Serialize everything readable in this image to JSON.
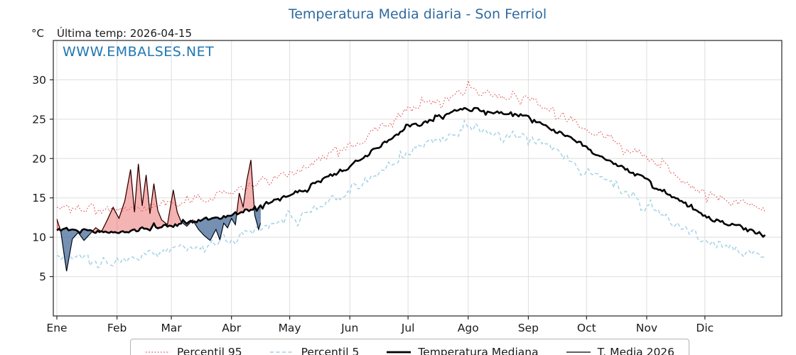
{
  "colors": {
    "title": "#2f6a9f",
    "watermark": "#1f77b4",
    "axis": "#262626",
    "grid": "#dedede",
    "text": "#1a1a1a"
  },
  "chart_data": {
    "type": "line",
    "title": "Temperatura Media diaria - Son Ferriol",
    "ylabel": "°C",
    "annotations": {
      "watermark": "WWW.EMBALSES.NET",
      "last_temp_label": "Última temp: 2026-04-15"
    },
    "grid": true,
    "legend_position": "bottom",
    "ylim": [
      0,
      35
    ],
    "y_ticks": [
      5,
      10,
      15,
      20,
      25,
      30
    ],
    "x_tick_labels": [
      "Ene",
      "Feb",
      "Mar",
      "Abr",
      "May",
      "Jun",
      "Jul",
      "Ago",
      "Sep",
      "Oct",
      "Nov",
      "Dic"
    ],
    "month_start_days": [
      0,
      31,
      59,
      90,
      120,
      151,
      181,
      212,
      243,
      273,
      304,
      334,
      365
    ],
    "series": [
      {
        "name": "Percentil 95",
        "color": "#e0504f",
        "style": "dotted",
        "width": 1.1,
        "noise": 0.9,
        "anchor_values": [
          13.8,
          13.4,
          14.3,
          15.8,
          18.2,
          21.6,
          26.2,
          28.6,
          27.6,
          24.0,
          20.2,
          15.6,
          13.2
        ]
      },
      {
        "name": "Percentil 5",
        "color": "#9fd0e6",
        "style": "dashed",
        "width": 1.4,
        "noise": 0.9,
        "anchor_values": [
          7.4,
          7.0,
          8.3,
          9.9,
          12.3,
          15.8,
          20.8,
          23.9,
          22.9,
          18.5,
          14.0,
          9.5,
          7.2
        ]
      },
      {
        "name": "Temperatura Mediana",
        "color": "#000000",
        "style": "solid",
        "width": 2.6,
        "noise": 0.45,
        "anchor_values": [
          11.0,
          10.6,
          11.5,
          12.8,
          15.2,
          19.0,
          23.9,
          26.4,
          25.4,
          21.4,
          17.2,
          12.6,
          10.2
        ]
      },
      {
        "name": "T. Media 2026",
        "color": "#000000",
        "style": "solid",
        "width": 0.9,
        "days": [
          0,
          2,
          5,
          8,
          11,
          14,
          17,
          20,
          23,
          26,
          29,
          32,
          35,
          38,
          40,
          42,
          44,
          46,
          48,
          50,
          52,
          54,
          57,
          60,
          62,
          64,
          67,
          70,
          73,
          76,
          79,
          82,
          84,
          86,
          88,
          90,
          92,
          94,
          96,
          98,
          100,
          102,
          104,
          105
        ],
        "values": [
          12.3,
          10.8,
          5.7,
          9.8,
          10.6,
          9.6,
          10.4,
          11.2,
          10.7,
          12.2,
          13.8,
          12.4,
          14.6,
          18.6,
          13.2,
          19.3,
          14.0,
          17.9,
          13.0,
          16.8,
          13.4,
          12.2,
          11.6,
          16.0,
          13.2,
          12.0,
          11.4,
          12.2,
          11.0,
          10.2,
          9.6,
          11.0,
          9.7,
          11.8,
          11.2,
          12.4,
          11.6,
          15.6,
          13.8,
          17.3,
          19.8,
          12.8,
          11.0,
          11.8
        ]
      }
    ],
    "fills": {
      "above_color": "rgba(233,106,106,0.5)",
      "above_edge": "#cc3333",
      "below_color": "rgba(93,125,166,0.85)",
      "below_edge": "#3b5f8a"
    }
  }
}
